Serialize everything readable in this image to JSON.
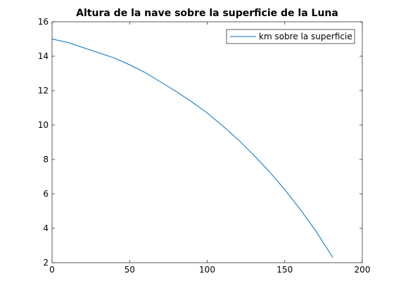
{
  "chart_data": {
    "type": "line",
    "title": "Altura de la nave sobre la superficie de la Luna",
    "xlabel": "",
    "ylabel": "",
    "xlim": [
      0,
      200
    ],
    "ylim": [
      2,
      16
    ],
    "x_ticks": [
      0,
      50,
      100,
      150,
      200
    ],
    "y_ticks": [
      2,
      4,
      6,
      8,
      10,
      12,
      14,
      16
    ],
    "grid": false,
    "legend_position": "top-right",
    "series": [
      {
        "name": "km sobre la superficie",
        "color": "#0072BD",
        "x": [
          0,
          10,
          20,
          30,
          40,
          50,
          60,
          70,
          80,
          90,
          100,
          110,
          120,
          130,
          140,
          150,
          160,
          170,
          181
        ],
        "y": [
          15.0,
          14.8,
          14.5,
          14.2,
          13.9,
          13.5,
          13.05,
          12.5,
          11.95,
          11.35,
          10.7,
          9.95,
          9.15,
          8.25,
          7.3,
          6.25,
          5.1,
          3.85,
          2.3
        ]
      }
    ]
  }
}
